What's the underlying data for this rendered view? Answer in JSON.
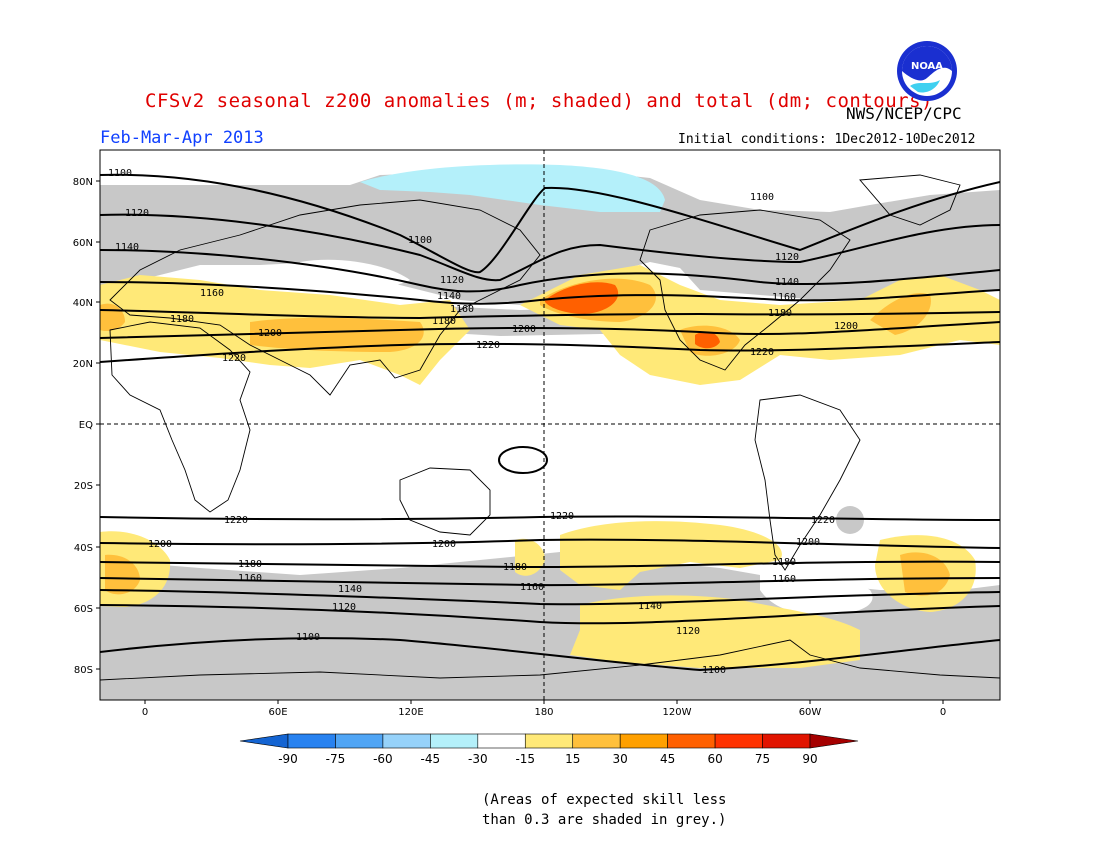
{
  "header": {
    "title": "CFSv2 seasonal z200 anomalies (m; shaded) and total (dm; contours)",
    "org": "NWS/NCEP/CPC",
    "season": "Feb-Mar-Apr 2013",
    "initial_conditions": "Initial conditions: 1Dec2012-10Dec2012",
    "logo_text": "NOAA"
  },
  "axes": {
    "lat_labels": [
      "80N",
      "60N",
      "40N",
      "20N",
      "EQ",
      "20S",
      "40S",
      "60S",
      "80S"
    ],
    "lon_labels": [
      "0",
      "60E",
      "120E",
      "180",
      "120W",
      "60W",
      "0"
    ]
  },
  "contours": {
    "labels": [
      "1100",
      "1120",
      "1140",
      "1160",
      "1180",
      "1200",
      "1220"
    ]
  },
  "colorbar": {
    "labels": [
      "-90",
      "-75",
      "-60",
      "-45",
      "-30",
      "-15",
      "15",
      "30",
      "45",
      "60",
      "75",
      "90"
    ],
    "colors": [
      "#1464d2",
      "#2882f0",
      "#50a5f5",
      "#96d2fa",
      "#b4f0fa",
      "#ffffff",
      "#ffe978",
      "#ffc03c",
      "#ffa000",
      "#ff6000",
      "#ff3200",
      "#e11400",
      "#a50000"
    ]
  },
  "note": {
    "line1": "(Areas of expected skill less",
    "line2": "than 0.3 are shaded in grey.)"
  },
  "colors": {
    "skill_grey": "#c8c8c8",
    "title_red": "#e00000",
    "season_blue": "#1040ff"
  }
}
